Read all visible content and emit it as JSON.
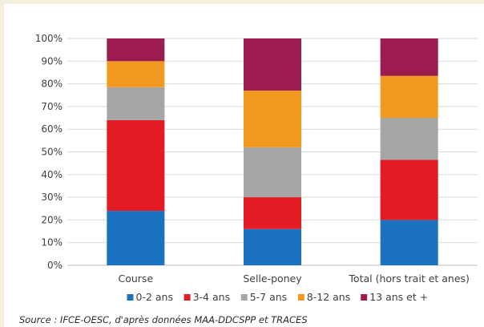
{
  "chart_data": {
    "type": "bar",
    "stacked": true,
    "categories": [
      "Course",
      "Selle-poney",
      "Total (hors trait et anes)"
    ],
    "series": [
      {
        "name": "0-2 ans",
        "color": "#1b72be",
        "values": [
          24,
          16,
          20
        ]
      },
      {
        "name": "3-4 ans",
        "color": "#e31c24",
        "values": [
          40,
          14,
          26.5
        ]
      },
      {
        "name": "5-7 ans",
        "color": "#a6a6a6",
        "values": [
          14.5,
          22,
          18.5
        ]
      },
      {
        "name": "8-12 ans",
        "color": "#f29a1f",
        "values": [
          11.5,
          25,
          18.5
        ]
      },
      {
        "name": "13 ans et +",
        "color": "#9c1c4f",
        "values": [
          10,
          23,
          16.5
        ]
      }
    ],
    "y_ticks": [
      "0%",
      "10%",
      "20%",
      "30%",
      "40%",
      "50%",
      "60%",
      "70%",
      "80%",
      "90%",
      "100%"
    ],
    "ylim": [
      0,
      100
    ],
    "grid": true,
    "legend_position": "bottom"
  },
  "source": "Source : IFCE-OESC, d'après données MAA-DDCSPP et TRACES"
}
